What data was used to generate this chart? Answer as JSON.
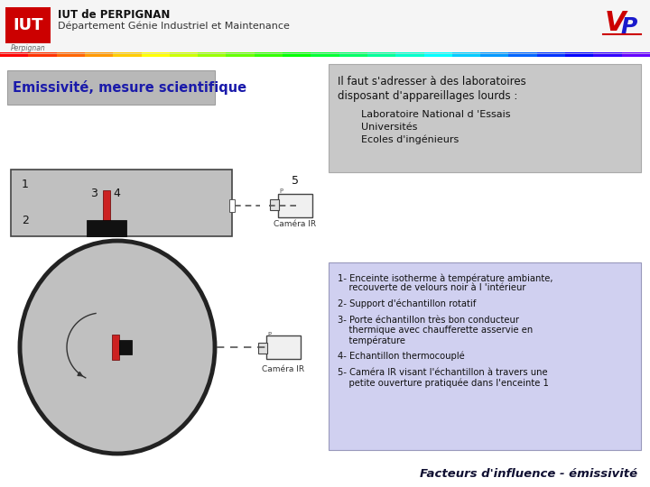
{
  "title_line1": "IUT de PERPIGNAN",
  "title_line2": "Département Génie Industriel et Maintenance",
  "slide_title": "Emissivité, mesure scientifique",
  "box1_line1": "Il faut s'adresser à des laboratoires",
  "box1_line2": "disposant d'appareillages lourds :",
  "box1_sub": "    Laboratoire National d 'Essais\n    Universités\n    Ecoles d'ingénieurs",
  "box2_items": [
    "1- Enceinte isotherme à température ambiante,\n    recouverte de velours noir à l 'intérieur",
    "2- Support d'échantillon rotatif",
    "3- Porte échantillon très bon conducteur\n    thermique avec chaufferette asservie en\n    température",
    "4- Echantillon thermocouplé",
    "5- Caméra IR visant l'échantillon à travers une\n    petite ouverture pratiquée dans l'enceinte 1"
  ],
  "footer": "Facteurs d'influence - émissivité",
  "bg_color": "#ffffff",
  "slide_title_bg": "#b8b8b8",
  "slide_title_color": "#1a1aaa",
  "box1_bg": "#c8c8c8",
  "box2_bg": "#d0d0f0",
  "diagram_bg": "#c0c0c0",
  "rainbow_colors": [
    "#ff0000",
    "#ff3300",
    "#ff6600",
    "#ff9900",
    "#ffcc00",
    "#ffff00",
    "#ccff00",
    "#99ff00",
    "#66ff00",
    "#33ff00",
    "#00ff00",
    "#00ff33",
    "#00ff66",
    "#00ff99",
    "#00ffcc",
    "#00ffff",
    "#00ccff",
    "#0099ff",
    "#0066ff",
    "#0033ff",
    "#0000ff",
    "#3300ff",
    "#6600ff"
  ],
  "camera_fill": "#f0f0f0",
  "camera_edge": "#444444"
}
